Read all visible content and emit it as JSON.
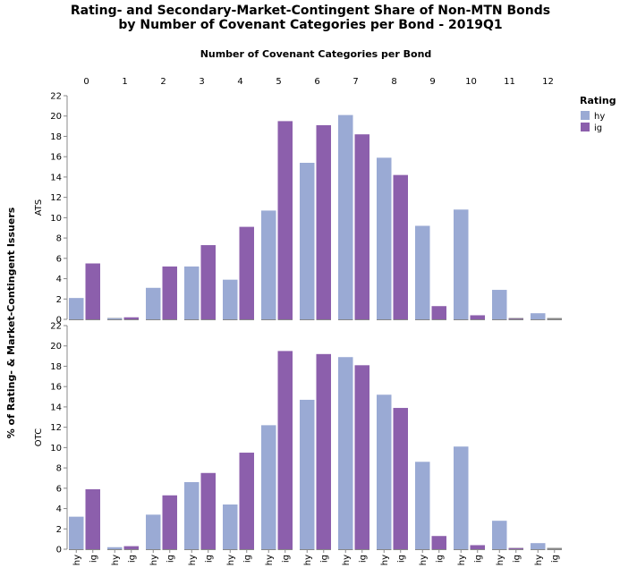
{
  "chart_data": {
    "type": "bar",
    "title_lines": [
      "Rating- and Secondary-Market-Contingent Share of Non-MTN Bonds",
      "by Number of Covenant Categories per Bond - 2019Q1"
    ],
    "column_title": "Number of Covenant Categories per Bond",
    "ylabel": "% of Rating- & Market-Contingent Issuers",
    "columns": [
      "0",
      "1",
      "2",
      "3",
      "4",
      "5",
      "6",
      "7",
      "8",
      "9",
      "10",
      "11",
      "12"
    ],
    "inner_categories": [
      "hy",
      "ig"
    ],
    "ylim": [
      0,
      22
    ],
    "yticks": [
      0,
      2,
      4,
      6,
      8,
      10,
      12,
      14,
      16,
      18,
      20,
      22
    ],
    "legend": {
      "title": "Rating",
      "position": "top-right",
      "items": [
        {
          "label": "hy",
          "color": "#9aaad4"
        },
        {
          "label": "ig",
          "color": "#8c5fac"
        }
      ]
    },
    "rows": [
      {
        "name": "ATS",
        "series": [
          {
            "name": "hy",
            "values": [
              2.1,
              0.1,
              3.1,
              5.2,
              3.9,
              10.7,
              15.4,
              20.1,
              15.9,
              9.2,
              10.8,
              2.9,
              0.6
            ]
          },
          {
            "name": "ig",
            "values": [
              5.5,
              0.2,
              5.2,
              7.3,
              9.1,
              19.5,
              19.1,
              18.2,
              14.2,
              1.3,
              0.4,
              0.05,
              0.0
            ]
          }
        ]
      },
      {
        "name": "OTC",
        "series": [
          {
            "name": "hy",
            "values": [
              3.2,
              0.2,
              3.4,
              6.6,
              4.4,
              12.2,
              14.7,
              18.9,
              15.2,
              8.6,
              10.1,
              2.8,
              0.6
            ]
          },
          {
            "name": "ig",
            "values": [
              5.9,
              0.3,
              5.3,
              7.5,
              9.5,
              19.5,
              19.2,
              18.1,
              13.9,
              1.3,
              0.4,
              0.1,
              0.0
            ]
          }
        ]
      }
    ]
  }
}
